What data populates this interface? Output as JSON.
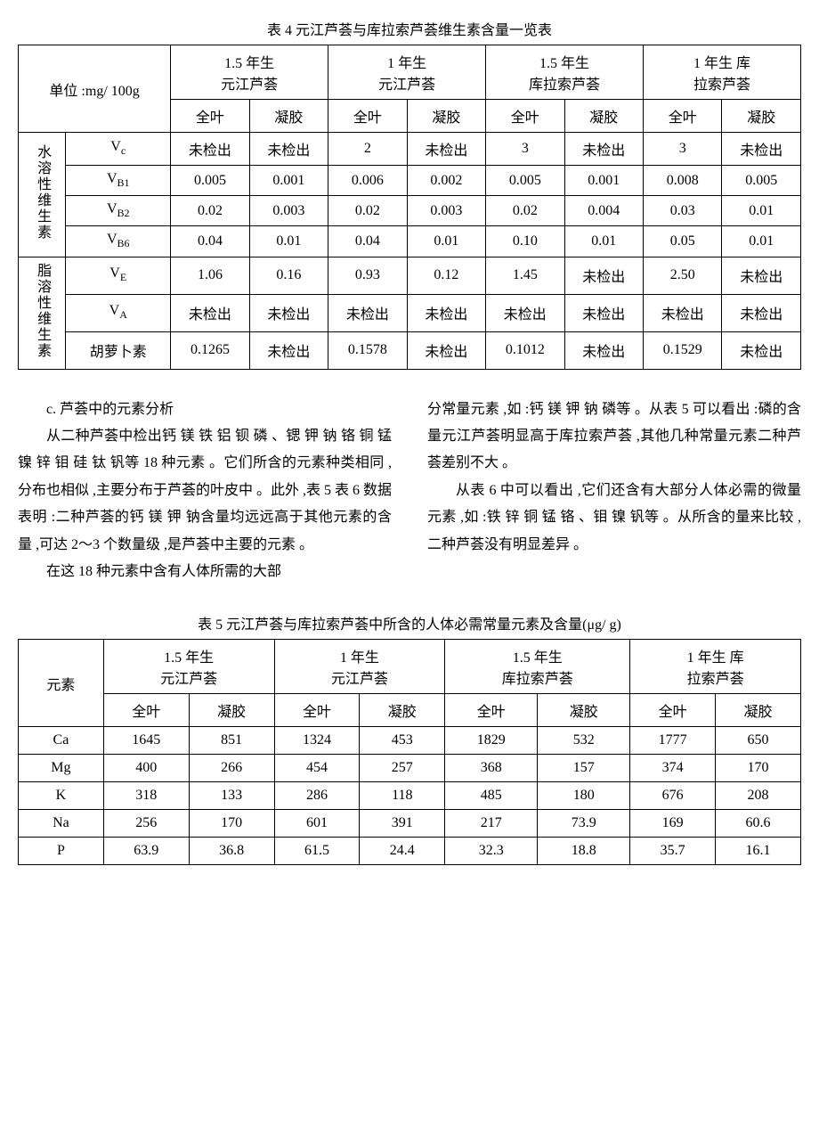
{
  "table4": {
    "title": "表 4   元江芦荟与库拉索芦荟维生素含量一览表",
    "unitLabel": "单位 :mg/ 100g",
    "groups": [
      {
        "line1": "1.5 年生",
        "line2": "元江芦荟"
      },
      {
        "line1": "1 年生",
        "line2": "元江芦荟"
      },
      {
        "line1": "1.5 年生",
        "line2": "库拉索芦荟"
      },
      {
        "line1": "1 年生 库",
        "line2": "拉索芦荟"
      }
    ],
    "subHeaders": {
      "a": "全叶",
      "b": "凝胶"
    },
    "section1": {
      "label": "水溶性维生素",
      "rows": [
        {
          "name": "V",
          "sub": "c",
          "v": [
            "未检出",
            "未检出",
            "2",
            "未检出",
            "3",
            "未检出",
            "3",
            "未检出"
          ]
        },
        {
          "name": "V",
          "sub": "B1",
          "v": [
            "0.005",
            "0.001",
            "0.006",
            "0.002",
            "0.005",
            "0.001",
            "0.008",
            "0.005"
          ]
        },
        {
          "name": "V",
          "sub": "B2",
          "v": [
            "0.02",
            "0.003",
            "0.02",
            "0.003",
            "0.02",
            "0.004",
            "0.03",
            "0.01"
          ]
        },
        {
          "name": "V",
          "sub": "B6",
          "v": [
            "0.04",
            "0.01",
            "0.04",
            "0.01",
            "0.10",
            "0.01",
            "0.05",
            "0.01"
          ]
        }
      ]
    },
    "section2": {
      "label": "脂溶性维生素",
      "rows": [
        {
          "name": "V",
          "sub": "E",
          "v": [
            "1.06",
            "0.16",
            "0.93",
            "0.12",
            "1.45",
            "未检出",
            "2.50",
            "未检出"
          ]
        },
        {
          "name": "V",
          "sub": "A",
          "v": [
            "未检出",
            "未检出",
            "未检出",
            "未检出",
            "未检出",
            "未检出",
            "未检出",
            "未检出"
          ]
        },
        {
          "name": "胡萝卜素",
          "sub": "",
          "multiline": true,
          "v": [
            "0.1265",
            "未检出",
            "0.1578",
            "未检出",
            "0.1012",
            "未检出",
            "0.1529",
            "未检出"
          ]
        }
      ]
    }
  },
  "bodyText": {
    "left": [
      "c. 芦荟中的元素分析",
      "从二种芦荟中检出钙 镁 铁 铝 钡 磷 、锶 钾 钠 铬 铜 锰 镍 锌 钼 硅 钛 钒等 18 种元素 。它们所含的元素种类相同 ,分布也相似 ,主要分布于芦荟的叶皮中 。此外 ,表 5 表 6 数据表明 :二种芦荟的钙 镁 钾 钠含量均远远高于其他元素的含量 ,可达 2～3 个数量级 ,是芦荟中主要的元素 。",
      "在这 18 种元素中含有人体所需的大部"
    ],
    "right": [
      "分常量元素 ,如 :钙 镁 钾 钠 磷等 。从表 5 可以看出 :磷的含量元江芦荟明显高于库拉索芦荟 ,其他几种常量元素二种芦荟差别不大 。",
      "从表 6 中可以看出 ,它们还含有大部分人体必需的微量元素 ,如 :铁 锌 铜 锰 铬 、钼 镍 钒等 。从所含的量来比较 ,二种芦荟没有明显差异 。"
    ]
  },
  "table5": {
    "title": "表 5   元江芦荟与库拉索芦荟中所含的人体必需常量元素及含量(μg/ g)",
    "rowHeader": "元素",
    "groups": [
      {
        "line1": "1.5 年生",
        "line2": "元江芦荟"
      },
      {
        "line1": "1 年生",
        "line2": "元江芦荟"
      },
      {
        "line1": "1.5 年生",
        "line2": "库拉索芦荟"
      },
      {
        "line1": "1 年生 库",
        "line2": "拉索芦荟"
      }
    ],
    "subHeaders": {
      "a": "全叶",
      "b": "凝胶"
    },
    "rows": [
      {
        "name": "Ca",
        "v": [
          "1645",
          "851",
          "1324",
          "453",
          "1829",
          "532",
          "1777",
          "650"
        ]
      },
      {
        "name": "Mg",
        "v": [
          "400",
          "266",
          "454",
          "257",
          "368",
          "157",
          "374",
          "170"
        ]
      },
      {
        "name": "K",
        "v": [
          "318",
          "133",
          "286",
          "118",
          "485",
          "180",
          "676",
          "208"
        ]
      },
      {
        "name": "Na",
        "v": [
          "256",
          "170",
          "601",
          "391",
          "217",
          "73.9",
          "169",
          "60.6"
        ]
      },
      {
        "name": "P",
        "v": [
          "63.9",
          "36.8",
          "61.5",
          "24.4",
          "32.3",
          "18.8",
          "35.7",
          "16.1"
        ]
      }
    ]
  }
}
